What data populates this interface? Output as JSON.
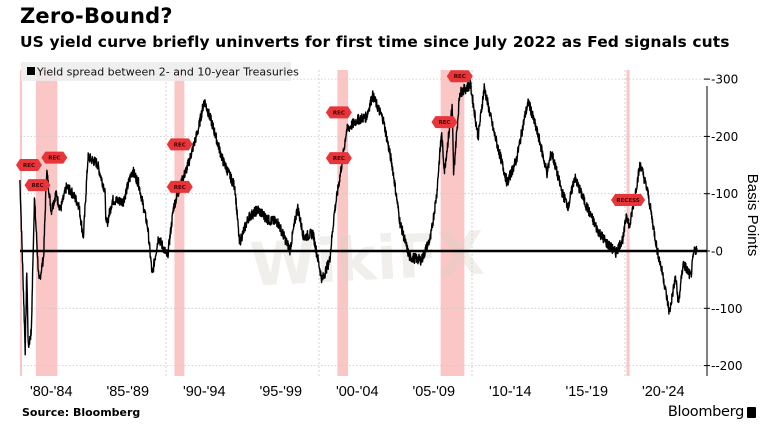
{
  "header": {
    "title": "Zero-Bound?",
    "subtitle": "US yield curve briefly uninverts for first time since July 2022 as Fed signals cuts"
  },
  "footer": {
    "source": "Source: Bloomberg",
    "brand": "Bloomberg"
  },
  "watermark": "WikiFX",
  "chart_data": {
    "type": "line",
    "title": "Zero-Bound?",
    "subtitle": "US yield curve briefly uninverts for first time since July 2022 as Fed signals cuts",
    "xlabel": "",
    "ylabel": "Basis Points",
    "legend": {
      "position": "top-left",
      "entries": [
        "Yield spread between 2- and 10-year Treasuries"
      ]
    },
    "x_tick_labels": [
      {
        "label": "'80-'84",
        "center": 1982.5
      },
      {
        "label": "'85-'89",
        "center": 1987.5
      },
      {
        "label": "'90-'94",
        "center": 1992.5
      },
      {
        "label": "'95-'99",
        "center": 1997.5
      },
      {
        "label": "'00-'04",
        "center": 2002.5
      },
      {
        "label": "'05-'09",
        "center": 2007.5
      },
      {
        "label": "'10-'14",
        "center": 2012.5
      },
      {
        "label": "'15-'19",
        "center": 2017.5
      },
      {
        "label": "'20-'24",
        "center": 2022.5
      }
    ],
    "y_ticks": [
      300,
      200,
      100,
      0,
      -100,
      -200
    ],
    "y_tick_labels": [
      "300",
      "200",
      "100",
      "0",
      "-100",
      "-200"
    ],
    "xlim": [
      1980.45,
      2024.9
    ],
    "ylim": [
      -216,
      318
    ],
    "grid": true,
    "reference_line": 0,
    "recession_bands": [
      [
        1980.0,
        1980.5
      ],
      [
        1981.5,
        1982.9
      ],
      [
        1990.55,
        1991.2
      ],
      [
        2001.2,
        2001.9
      ],
      [
        2007.95,
        2009.5
      ],
      [
        2020.1,
        2020.3
      ]
    ],
    "recession_markers": [
      {
        "label": "REC",
        "x": 1980.3,
        "y": 150
      },
      {
        "label": "REC",
        "x": 1981.6,
        "y": 115
      },
      {
        "label": "REC",
        "x": 1982.7,
        "y": 163
      },
      {
        "label": "REC",
        "x": 1990.9,
        "y": 186
      },
      {
        "label": "REC",
        "x": 1990.9,
        "y": 112
      },
      {
        "label": "REC",
        "x": 2001.3,
        "y": 242
      },
      {
        "label": "REC",
        "x": 2001.3,
        "y": 162
      },
      {
        "label": "REC",
        "x": 2008.2,
        "y": 225
      },
      {
        "label": "REC",
        "x": 2009.2,
        "y": 305
      },
      {
        "label": "RECESS",
        "x": 2020.2,
        "y": 89
      }
    ],
    "series": [
      {
        "name": "Yield spread between 2- and 10-year Treasuries",
        "color": "#000000",
        "points": [
          [
            1980.45,
            124
          ],
          [
            1980.6,
            0
          ],
          [
            1980.8,
            -173
          ],
          [
            1980.9,
            -33
          ],
          [
            1981.0,
            -168
          ],
          [
            1981.2,
            -140
          ],
          [
            1981.4,
            94
          ],
          [
            1981.7,
            -56
          ],
          [
            1982.0,
            -10
          ],
          [
            1982.2,
            141
          ],
          [
            1982.5,
            70
          ],
          [
            1982.8,
            100
          ],
          [
            1983.1,
            72
          ],
          [
            1983.5,
            112
          ],
          [
            1983.9,
            100
          ],
          [
            1984.3,
            80
          ],
          [
            1984.6,
            23
          ],
          [
            1984.9,
            164
          ],
          [
            1985.5,
            153
          ],
          [
            1986.0,
            106
          ],
          [
            1986.1,
            42
          ],
          [
            1986.5,
            89
          ],
          [
            1987.2,
            86
          ],
          [
            1987.8,
            141
          ],
          [
            1988.2,
            119
          ],
          [
            1988.8,
            42
          ],
          [
            1989.1,
            -42
          ],
          [
            1989.5,
            24
          ],
          [
            1990.1,
            -10
          ],
          [
            1990.5,
            77
          ],
          [
            1991.0,
            119
          ],
          [
            1991.4,
            147
          ],
          [
            1992.1,
            211
          ],
          [
            1992.5,
            263
          ],
          [
            1993.0,
            223
          ],
          [
            1993.7,
            159
          ],
          [
            1994.5,
            112
          ],
          [
            1994.8,
            14
          ],
          [
            1995.4,
            59
          ],
          [
            1996.0,
            72
          ],
          [
            1996.7,
            54
          ],
          [
            1997.3,
            50
          ],
          [
            1998.1,
            2
          ],
          [
            1998.6,
            77
          ],
          [
            1999.0,
            24
          ],
          [
            1999.6,
            31
          ],
          [
            2000.2,
            -51
          ],
          [
            2000.7,
            -16
          ],
          [
            2001.0,
            66
          ],
          [
            2001.5,
            153
          ],
          [
            2001.8,
            211
          ],
          [
            2002.5,
            229
          ],
          [
            2003.1,
            234
          ],
          [
            2003.5,
            272
          ],
          [
            2004.2,
            229
          ],
          [
            2004.8,
            147
          ],
          [
            2005.3,
            49
          ],
          [
            2005.9,
            -10
          ],
          [
            2006.7,
            -16
          ],
          [
            2007.3,
            24
          ],
          [
            2007.7,
            101
          ],
          [
            2008.0,
            206
          ],
          [
            2008.2,
            141
          ],
          [
            2008.7,
            251
          ],
          [
            2008.8,
            136
          ],
          [
            2009.2,
            276
          ],
          [
            2009.9,
            290
          ],
          [
            2010.4,
            199
          ],
          [
            2010.8,
            286
          ],
          [
            2011.4,
            211
          ],
          [
            2011.8,
            170
          ],
          [
            2012.3,
            119
          ],
          [
            2012.9,
            159
          ],
          [
            2013.5,
            241
          ],
          [
            2013.7,
            260
          ],
          [
            2014.4,
            194
          ],
          [
            2014.9,
            136
          ],
          [
            2015.2,
            173
          ],
          [
            2015.9,
            101
          ],
          [
            2016.3,
            77
          ],
          [
            2016.7,
            129
          ],
          [
            2017.5,
            77
          ],
          [
            2018.2,
            37
          ],
          [
            2018.8,
            14
          ],
          [
            2019.4,
            -3
          ],
          [
            2019.9,
            24
          ],
          [
            2020.1,
            66
          ],
          [
            2020.3,
            42
          ],
          [
            2021.0,
            153
          ],
          [
            2021.5,
            101
          ],
          [
            2022.1,
            2
          ],
          [
            2022.5,
            -45
          ],
          [
            2022.9,
            -108
          ],
          [
            2023.3,
            -45
          ],
          [
            2023.5,
            -92
          ],
          [
            2023.8,
            -21
          ],
          [
            2024.3,
            -45
          ],
          [
            2024.5,
            -3
          ],
          [
            2024.7,
            5
          ]
        ]
      }
    ]
  }
}
